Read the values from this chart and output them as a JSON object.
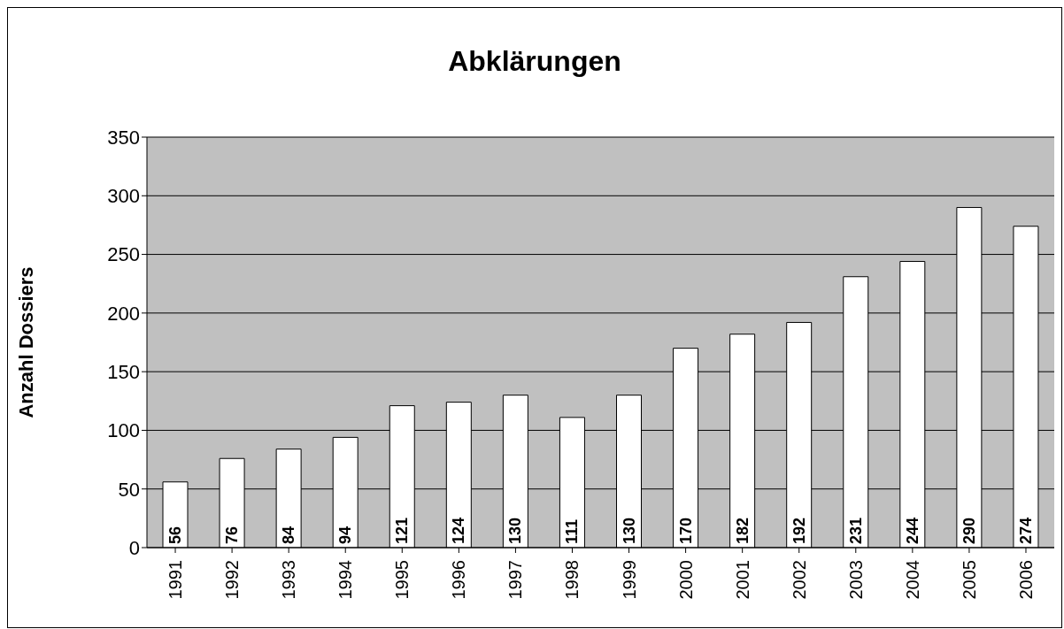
{
  "chart_data": {
    "type": "bar",
    "title": "Abklärungen",
    "ylabel": "Anzahl Dossiers",
    "categories": [
      "1991",
      "1992",
      "1993",
      "1994",
      "1995",
      "1996",
      "1997",
      "1998",
      "1999",
      "2000",
      "2001",
      "2002",
      "2003",
      "2004",
      "2005",
      "2006"
    ],
    "values": [
      56,
      76,
      84,
      94,
      121,
      124,
      130,
      111,
      130,
      170,
      182,
      192,
      231,
      244,
      290,
      274
    ],
    "color": "#ffffff",
    "ylim": [
      0,
      350
    ],
    "yticks": [
      0,
      50,
      100,
      150,
      200,
      250,
      300,
      350
    ],
    "grid": "y",
    "data_labels": true
  }
}
